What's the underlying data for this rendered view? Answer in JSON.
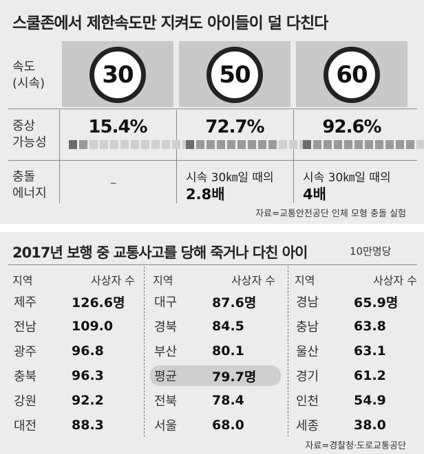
{
  "section1": {
    "title": "스쿨존에서 제한속도만 지켜도 아이들이 덜 다친다",
    "rows": {
      "speed_label": [
        "속도",
        "(시속)"
      ],
      "injury_label": [
        "중상",
        "가능성"
      ],
      "energy_label": [
        "충돌",
        "에너지"
      ]
    },
    "columns": [
      {
        "speed": "30",
        "injury": "15.4%",
        "injury_pct": 15.4,
        "energy_text": "–",
        "energy_value": ""
      },
      {
        "speed": "50",
        "injury": "72.7%",
        "injury_pct": 72.7,
        "energy_text": "시속 30㎞일 때의",
        "energy_value": "2.8배"
      },
      {
        "speed": "60",
        "injury": "92.6%",
        "injury_pct": 92.6,
        "energy_text": "시속 30㎞일 때의",
        "energy_value": "4배"
      }
    ],
    "source": "자료=교통안전공단 인체 모형 충돌 실험"
  },
  "section2": {
    "title": "2017년 보행 중 교통사고를 당해 죽거나 다친 아이",
    "unit": "10만명당",
    "header_region": "지역",
    "header_value": "사상자 수",
    "columns": [
      [
        {
          "region": "제주",
          "value": "126.6명"
        },
        {
          "region": "전남",
          "value": "109.0"
        },
        {
          "region": "광주",
          "value": "96.8"
        },
        {
          "region": "충북",
          "value": "96.3"
        },
        {
          "region": "강원",
          "value": "92.2"
        },
        {
          "region": "대전",
          "value": "88.3"
        }
      ],
      [
        {
          "region": "대구",
          "value": "87.6명"
        },
        {
          "region": "경북",
          "value": "84.5"
        },
        {
          "region": "부산",
          "value": "80.1"
        },
        {
          "region": "평균",
          "value": "79.7명",
          "highlight": true
        },
        {
          "region": "전북",
          "value": "78.4"
        },
        {
          "region": "서울",
          "value": "68.0"
        }
      ],
      [
        {
          "region": "경남",
          "value": "65.9명"
        },
        {
          "region": "충남",
          "value": "63.8"
        },
        {
          "region": "울산",
          "value": "63.1"
        },
        {
          "region": "경기",
          "value": "61.2"
        },
        {
          "region": "인천",
          "value": "54.9"
        },
        {
          "region": "세종",
          "value": "38.0"
        }
      ]
    ],
    "source": "자료=경찰청·도로교통공단"
  },
  "colors": {
    "panel_bg": "#ececec",
    "sign_box": "#c9c9c9",
    "bar_fill": "#9a9a9a",
    "highlight": "#cfcfcf"
  }
}
